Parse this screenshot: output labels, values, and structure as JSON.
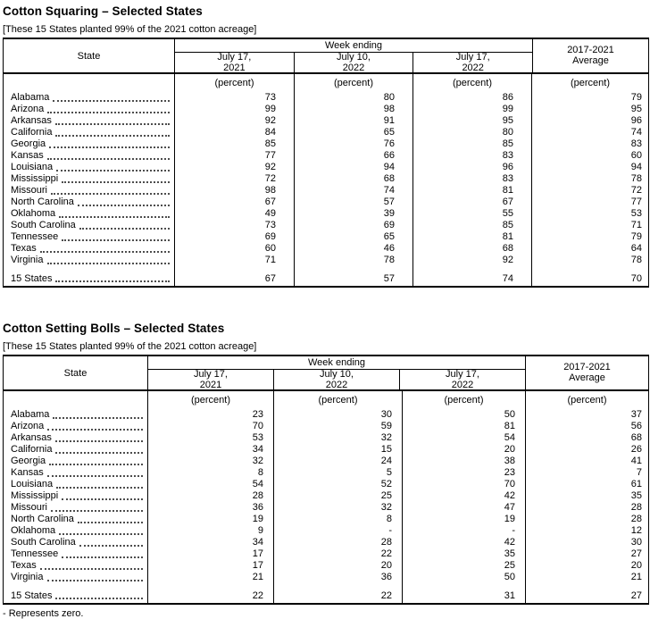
{
  "sections": [
    {
      "title": "Cotton Squaring – Selected States",
      "note": "[These 15 States planted 99% of the 2021 cotton acreage]",
      "header": {
        "state_label": "State",
        "week_ending_label": "Week ending",
        "week_columns": [
          "July 17,\n2021",
          "July 10,\n2022",
          "July 17,\n2022"
        ],
        "average_label": "2017-2021\nAverage",
        "unit_label": "(percent)"
      },
      "rows": [
        {
          "state": "Alabama",
          "values": [
            "73",
            "80",
            "86",
            "79"
          ]
        },
        {
          "state": "Arizona",
          "values": [
            "99",
            "98",
            "99",
            "95"
          ]
        },
        {
          "state": "Arkansas",
          "values": [
            "92",
            "91",
            "95",
            "96"
          ]
        },
        {
          "state": "California",
          "values": [
            "84",
            "65",
            "80",
            "74"
          ]
        },
        {
          "state": "Georgia",
          "values": [
            "85",
            "76",
            "85",
            "83"
          ]
        },
        {
          "state": "Kansas",
          "values": [
            "77",
            "66",
            "83",
            "60"
          ]
        },
        {
          "state": "Louisiana",
          "values": [
            "92",
            "94",
            "96",
            "94"
          ]
        },
        {
          "state": "Mississippi",
          "values": [
            "72",
            "68",
            "83",
            "78"
          ]
        },
        {
          "state": "Missouri",
          "values": [
            "98",
            "74",
            "81",
            "72"
          ]
        },
        {
          "state": "North Carolina",
          "values": [
            "67",
            "57",
            "67",
            "77"
          ]
        },
        {
          "state": "Oklahoma",
          "values": [
            "49",
            "39",
            "55",
            "53"
          ]
        },
        {
          "state": "South Carolina",
          "values": [
            "73",
            "69",
            "85",
            "71"
          ]
        },
        {
          "state": "Tennessee",
          "values": [
            "69",
            "65",
            "81",
            "79"
          ]
        },
        {
          "state": "Texas",
          "values": [
            "60",
            "46",
            "68",
            "64"
          ]
        },
        {
          "state": "Virginia",
          "values": [
            "71",
            "78",
            "92",
            "78"
          ]
        }
      ],
      "total_row": {
        "state": "15 States",
        "values": [
          "67",
          "57",
          "74",
          "70"
        ]
      }
    },
    {
      "title": "Cotton Setting Bolls – Selected States",
      "note": "[These 15 States planted 99% of the 2021 cotton acreage]",
      "header": {
        "state_label": "State",
        "week_ending_label": "Week ending",
        "week_columns": [
          "July 17,\n2021",
          "July 10,\n2022",
          "July 17,\n2022"
        ],
        "average_label": "2017-2021\nAverage",
        "unit_label": "(percent)"
      },
      "rows": [
        {
          "state": "Alabama",
          "values": [
            "23",
            "30",
            "50",
            "37"
          ]
        },
        {
          "state": "Arizona",
          "values": [
            "70",
            "59",
            "81",
            "56"
          ]
        },
        {
          "state": "Arkansas",
          "values": [
            "53",
            "32",
            "54",
            "68"
          ]
        },
        {
          "state": "California",
          "values": [
            "34",
            "15",
            "20",
            "26"
          ]
        },
        {
          "state": "Georgia",
          "values": [
            "32",
            "24",
            "38",
            "41"
          ]
        },
        {
          "state": "Kansas",
          "values": [
            "8",
            "5",
            "23",
            "7"
          ]
        },
        {
          "state": "Louisiana",
          "values": [
            "54",
            "52",
            "70",
            "61"
          ]
        },
        {
          "state": "Mississippi",
          "values": [
            "28",
            "25",
            "42",
            "35"
          ]
        },
        {
          "state": "Missouri",
          "values": [
            "36",
            "32",
            "47",
            "28"
          ]
        },
        {
          "state": "North Carolina",
          "values": [
            "19",
            "8",
            "19",
            "28"
          ]
        },
        {
          "state": "Oklahoma",
          "values": [
            "9",
            "-",
            "-",
            "12"
          ]
        },
        {
          "state": "South Carolina",
          "values": [
            "34",
            "28",
            "42",
            "30"
          ]
        },
        {
          "state": "Tennessee",
          "values": [
            "17",
            "22",
            "35",
            "27"
          ]
        },
        {
          "state": "Texas",
          "values": [
            "17",
            "20",
            "25",
            "20"
          ]
        },
        {
          "state": "Virginia",
          "values": [
            "21",
            "36",
            "50",
            "21"
          ]
        }
      ],
      "total_row": {
        "state": "15 States",
        "values": [
          "22",
          "22",
          "31",
          "27"
        ]
      },
      "footnote": "- Represents zero."
    }
  ]
}
